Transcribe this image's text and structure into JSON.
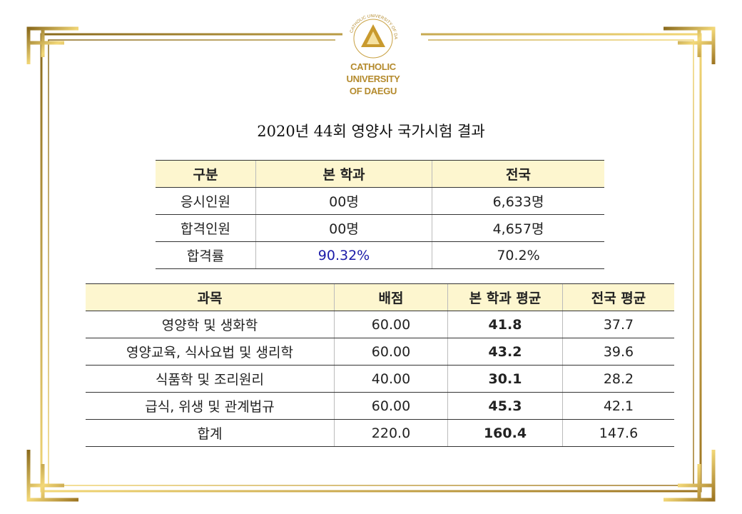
{
  "logo": {
    "ring_text": "CATHOLIC UNIVERSITY OF DAEGU",
    "lines": [
      "CATHOLIC",
      "UNIVERSITY",
      "OF DAEGU"
    ]
  },
  "title": "2020년 44회 영양사 국가시험 결과",
  "table1": {
    "header": [
      "구분",
      "본 학과",
      "전국"
    ],
    "rows": [
      [
        "응시인원",
        "00명",
        "6,633명"
      ],
      [
        "합격인원",
        "00명",
        "4,657명"
      ],
      [
        "합격률",
        "90.32%",
        "70.2%"
      ]
    ]
  },
  "table2": {
    "header": [
      "과목",
      "배점",
      "본 학과 평균",
      "전국 평균"
    ],
    "rows": [
      [
        "영양학 및 생화학",
        "60.00",
        "41.8",
        "37.7"
      ],
      [
        "영양교육, 식사요법 및 생리학",
        "60.00",
        "43.2",
        "39.6"
      ],
      [
        "식품학 및 조리원리",
        "40.00",
        "30.1",
        "28.2"
      ],
      [
        "급식, 위생 및 관계법규",
        "60.00",
        "45.3",
        "42.1"
      ],
      [
        "합계",
        "220.0",
        "160.4",
        "147.6"
      ]
    ]
  }
}
